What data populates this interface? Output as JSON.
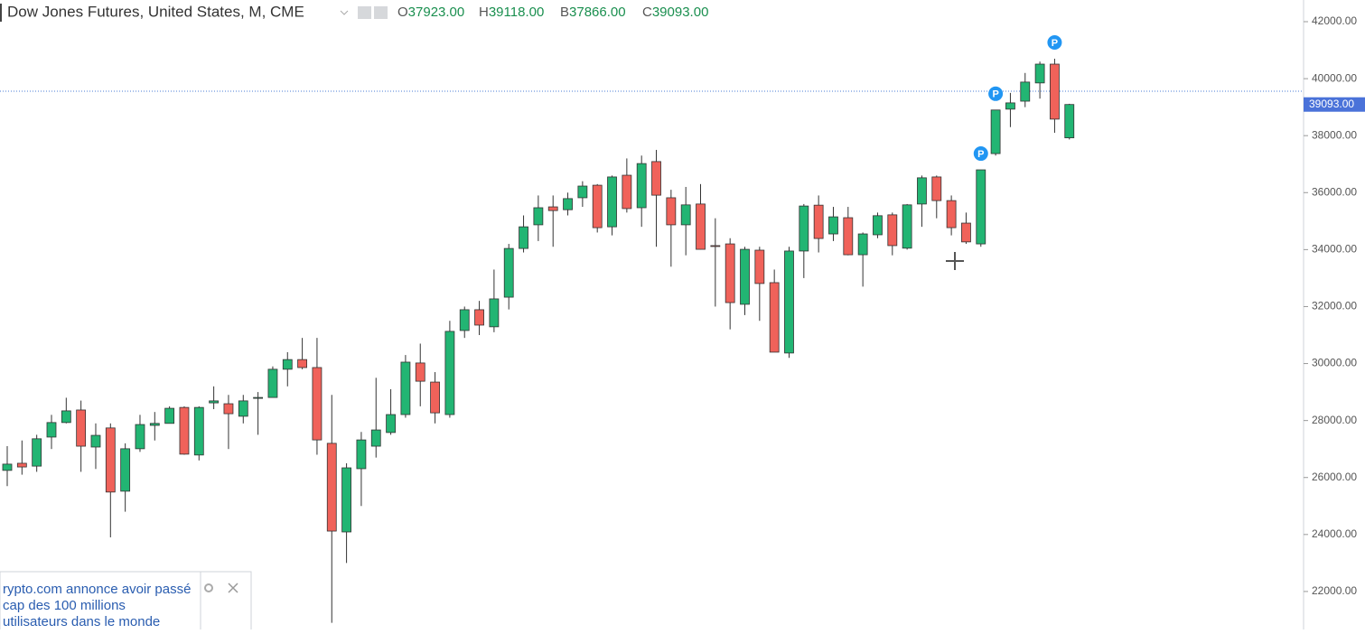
{
  "header": {
    "title": "Dow Jones Futures, United States, M, CME",
    "ohlc": [
      {
        "key": "O",
        "value": "37923.00"
      },
      {
        "key": "H",
        "value": "39118.00"
      },
      {
        "key": "B",
        "value": "37866.00"
      },
      {
        "key": "C",
        "value": "39093.00"
      }
    ]
  },
  "news": {
    "lines": [
      "rypto.com annonce avoir passé",
      "cap des 100 millions",
      "utilisateurs dans le monde"
    ]
  },
  "chart_data": {
    "type": "candlestick",
    "up_color": "#22b573",
    "down_color": "#f0625a",
    "ylim": [
      20666,
      42761
    ],
    "yticks": [
      {
        "value": 22000,
        "label": "22000.00"
      },
      {
        "value": 24000,
        "label": "24000.00"
      },
      {
        "value": 26000,
        "label": "26000.00"
      },
      {
        "value": 28000,
        "label": "28000.00"
      },
      {
        "value": 30000,
        "label": "30000.00"
      },
      {
        "value": 32000,
        "label": "32000.00"
      },
      {
        "value": 34000,
        "label": "34000.00"
      },
      {
        "value": 36000,
        "label": "36000.00"
      },
      {
        "value": 38000,
        "label": "38000.00"
      },
      {
        "value": 40000,
        "label": "40000.00"
      },
      {
        "value": 42000,
        "label": "42000.00"
      }
    ],
    "open": [
      26250,
      26500,
      26400,
      27420,
      27930,
      28370,
      27070,
      27740,
      25520,
      27010,
      27830,
      27900,
      28460,
      26790,
      28620,
      28590,
      28150,
      28780,
      28810,
      29800,
      30140,
      29860,
      27200,
      24090,
      26310,
      27100,
      27580,
      28210,
      30020,
      29350,
      28210,
      31160,
      31890,
      31290,
      32330,
      34040,
      34870,
      35500,
      35400,
      35820,
      36260,
      34800,
      36610,
      35470,
      37090,
      35820,
      34870,
      35600,
      34140,
      34200,
      32080,
      33980,
      32840,
      30370,
      33950,
      35560,
      34550,
      35120,
      33820,
      34520,
      35220,
      34050,
      35600,
      36550,
      35720,
      34930,
      34200,
      37370,
      38930,
      39210,
      39850,
      40510,
      37923
    ],
    "high": [
      27100,
      27300,
      27500,
      28200,
      28800,
      28700,
      27900,
      27900,
      27200,
      28200,
      28300,
      28500,
      28500,
      28500,
      29200,
      28900,
      28900,
      29000,
      29900,
      30400,
      30900,
      30900,
      28900,
      26500,
      27600,
      29500,
      29100,
      30300,
      30700,
      29700,
      31500,
      32000,
      32200,
      33300,
      34200,
      35200,
      35900,
      35900,
      36000,
      36400,
      36300,
      36600,
      37200,
      37300,
      37500,
      36100,
      36200,
      36300,
      35100,
      34400,
      34100,
      34100,
      33300,
      34100,
      35600,
      35900,
      35500,
      35500,
      34600,
      35300,
      35300,
      35600,
      36600,
      36600,
      35900,
      35300,
      36800,
      38900,
      39500,
      40200,
      40600,
      40700,
      39118
    ],
    "low": [
      25700,
      26100,
      26200,
      27000,
      27900,
      26200,
      26300,
      23900,
      24800,
      26900,
      27300,
      28000,
      26800,
      26600,
      28400,
      27000,
      27900,
      27500,
      28800,
      29200,
      29800,
      26800,
      20900,
      23000,
      25000,
      26700,
      27500,
      28100,
      28500,
      27900,
      28100,
      30900,
      31000,
      31100,
      31900,
      33900,
      34300,
      34100,
      35200,
      35500,
      34600,
      34500,
      35300,
      34800,
      34100,
      33400,
      33800,
      34000,
      32000,
      31200,
      31700,
      31500,
      30400,
      30200,
      33000,
      33900,
      34300,
      33800,
      32700,
      34400,
      33800,
      34000,
      34800,
      35100,
      34500,
      34200,
      34100,
      37300,
      38300,
      39000,
      39300,
      38100,
      37866
    ],
    "close": [
      26470,
      26370,
      27360,
      27930,
      28340,
      27100,
      27480,
      25490,
      27010,
      27860,
      27900,
      28430,
      26820,
      28460,
      28690,
      28240,
      28690,
      28810,
      29800,
      30140,
      29860,
      27320,
      24120,
      26340,
      27320,
      27670,
      28210,
      30050,
      29380,
      28270,
      31130,
      31890,
      31350,
      32270,
      34040,
      34800,
      35470,
      35370,
      35790,
      36230,
      34770,
      36550,
      35440,
      37020,
      35910,
      34870,
      35570,
      34010,
      34110,
      32140,
      34010,
      32810,
      30400,
      33950,
      35530,
      34390,
      35150,
      33820,
      34550,
      35190,
      34140,
      35570,
      36520,
      35720,
      34770,
      34270,
      36800,
      38900,
      39150,
      39880,
      40510,
      38580,
      39093
    ],
    "markers": [
      {
        "index": 66,
        "label": "P"
      },
      {
        "index": 67,
        "label": "P"
      },
      {
        "index": 71,
        "label": "P"
      }
    ]
  }
}
